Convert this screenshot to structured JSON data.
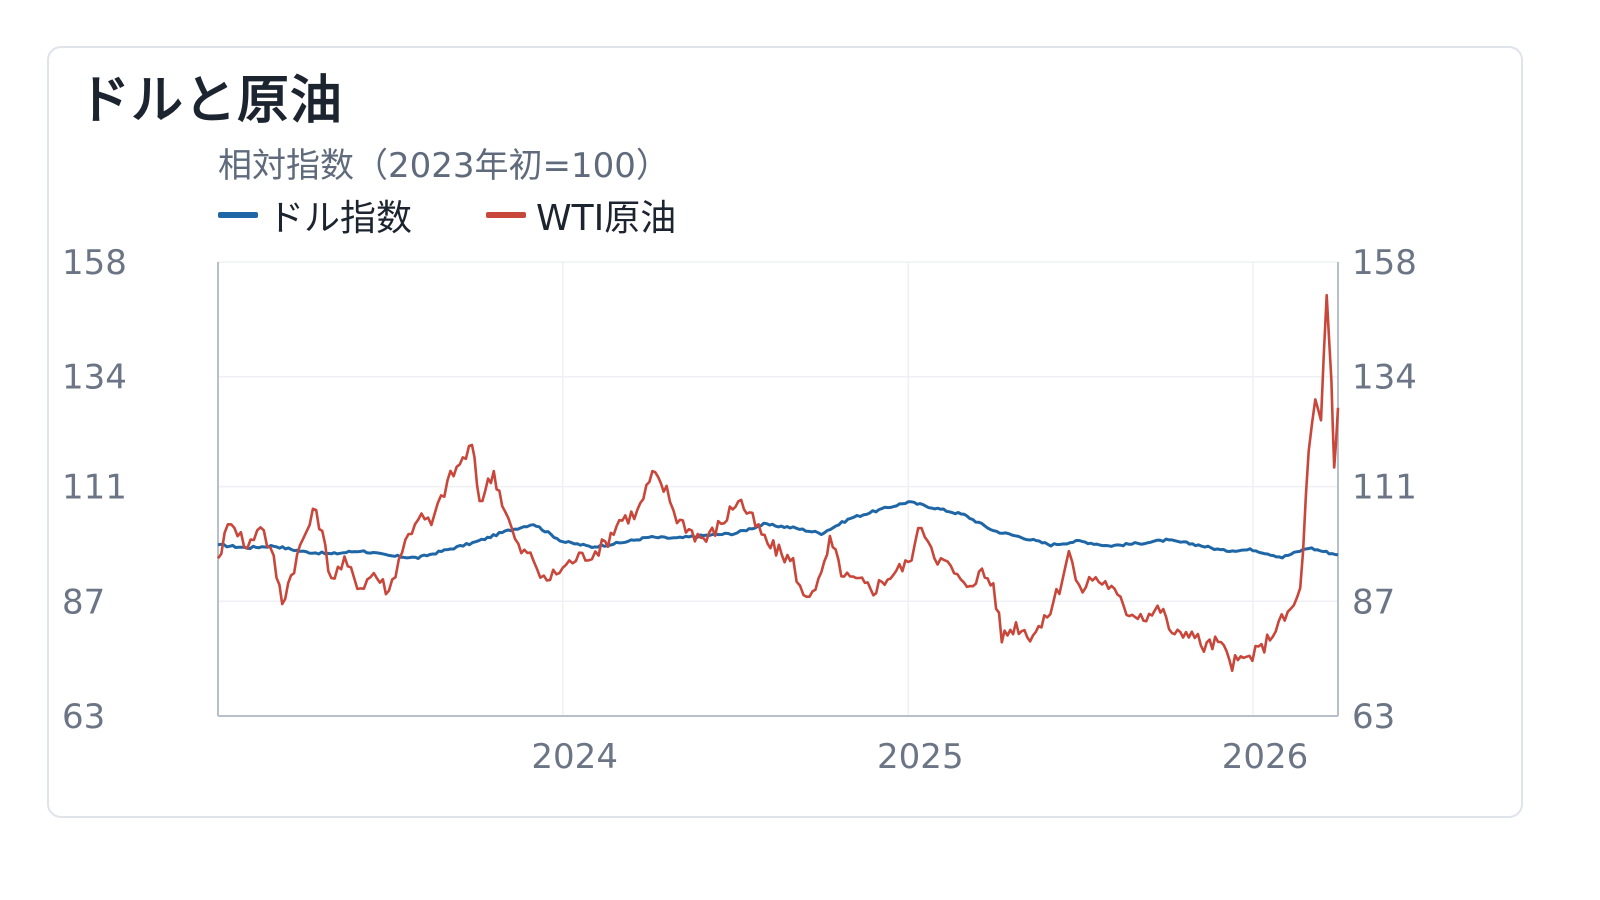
{
  "title": "ドルと原油",
  "chart_data": {
    "type": "line",
    "subtitle": "相対指数（2023年初=100）",
    "x_range": [
      "2023-01-01",
      "2026-04-01"
    ],
    "y_range": [
      63,
      158
    ],
    "y_ticks": [
      63,
      87,
      111,
      134,
      158
    ],
    "x_ticks": [
      {
        "label": "2024",
        "date": "2024-01-01"
      },
      {
        "label": "2025",
        "date": "2025-01-01"
      },
      {
        "label": "2026",
        "date": "2026-01-01"
      }
    ],
    "grid": true,
    "legend_position": "top-left",
    "series": [
      {
        "name": "ドル指数",
        "color": "#1f66a6",
        "points": [
          [
            "2023-01-01",
            98.8
          ],
          [
            "2023-02-01",
            98.2
          ],
          [
            "2023-03-01",
            98.6
          ],
          [
            "2023-04-01",
            97.4
          ],
          [
            "2023-05-01",
            96.9
          ],
          [
            "2023-06-01",
            97.6
          ],
          [
            "2023-07-01",
            96.5
          ],
          [
            "2023-08-01",
            96.1
          ],
          [
            "2023-09-01",
            97.8
          ],
          [
            "2023-10-01",
            99.4
          ],
          [
            "2023-11-01",
            101.6
          ],
          [
            "2023-12-01",
            103.2
          ],
          [
            "2024-01-01",
            99.5
          ],
          [
            "2024-02-01",
            98.4
          ],
          [
            "2024-03-01",
            99.2
          ],
          [
            "2024-04-01",
            100.4
          ],
          [
            "2024-05-01",
            100.2
          ],
          [
            "2024-06-01",
            100.8
          ],
          [
            "2024-07-01",
            101.2
          ],
          [
            "2024-08-01",
            103.1
          ],
          [
            "2024-09-01",
            102.4
          ],
          [
            "2024-10-01",
            101.2
          ],
          [
            "2024-11-01",
            104.4
          ],
          [
            "2024-12-01",
            106.1
          ],
          [
            "2025-01-01",
            107.8
          ],
          [
            "2025-02-01",
            106.4
          ],
          [
            "2025-03-01",
            105.1
          ],
          [
            "2025-04-01",
            101.8
          ],
          [
            "2025-05-01",
            100.4
          ],
          [
            "2025-06-01",
            98.8
          ],
          [
            "2025-07-01",
            99.6
          ],
          [
            "2025-08-01",
            98.6
          ],
          [
            "2025-09-01",
            99.1
          ],
          [
            "2025-10-01",
            99.8
          ],
          [
            "2025-11-01",
            98.9
          ],
          [
            "2025-12-01",
            97.6
          ],
          [
            "2026-01-01",
            97.8
          ],
          [
            "2026-02-01",
            96.2
          ],
          [
            "2026-03-01",
            98.2
          ],
          [
            "2026-04-01",
            96.7
          ]
        ]
      },
      {
        "name": "WTI原油",
        "color": "#c8473a",
        "points": [
          [
            "2023-01-01",
            96.0
          ],
          [
            "2023-01-15",
            104.5
          ],
          [
            "2023-02-01",
            98.0
          ],
          [
            "2023-02-15",
            103.5
          ],
          [
            "2023-03-01",
            95.5
          ],
          [
            "2023-03-10",
            87.0
          ],
          [
            "2023-04-01",
            100.0
          ],
          [
            "2023-04-15",
            106.5
          ],
          [
            "2023-05-01",
            92.0
          ],
          [
            "2023-05-15",
            95.0
          ],
          [
            "2023-06-01",
            90.0
          ],
          [
            "2023-06-15",
            93.0
          ],
          [
            "2023-07-01",
            89.0
          ],
          [
            "2023-07-15",
            98.0
          ],
          [
            "2023-08-01",
            105.0
          ],
          [
            "2023-08-15",
            103.0
          ],
          [
            "2023-09-01",
            112.0
          ],
          [
            "2023-09-27",
            119.5
          ],
          [
            "2023-10-05",
            108.0
          ],
          [
            "2023-10-20",
            114.0
          ],
          [
            "2023-11-01",
            106.0
          ],
          [
            "2023-11-15",
            98.0
          ],
          [
            "2023-12-01",
            96.0
          ],
          [
            "2023-12-12",
            91.0
          ],
          [
            "2024-01-01",
            94.0
          ],
          [
            "2024-01-15",
            96.0
          ],
          [
            "2024-02-01",
            97.0
          ],
          [
            "2024-02-15",
            99.0
          ],
          [
            "2024-03-01",
            104.0
          ],
          [
            "2024-03-20",
            105.5
          ],
          [
            "2024-04-05",
            113.5
          ],
          [
            "2024-04-20",
            110.0
          ],
          [
            "2024-05-01",
            104.5
          ],
          [
            "2024-05-20",
            101.0
          ],
          [
            "2024-06-01",
            100.0
          ],
          [
            "2024-06-20",
            104.0
          ],
          [
            "2024-07-05",
            108.5
          ],
          [
            "2024-07-20",
            104.0
          ],
          [
            "2024-08-05",
            99.0
          ],
          [
            "2024-08-20",
            97.0
          ],
          [
            "2024-09-01",
            95.0
          ],
          [
            "2024-09-12",
            87.5
          ],
          [
            "2024-10-01",
            92.0
          ],
          [
            "2024-10-10",
            99.5
          ],
          [
            "2024-10-25",
            92.0
          ],
          [
            "2024-11-10",
            91.0
          ],
          [
            "2024-11-25",
            89.5
          ],
          [
            "2024-12-10",
            92.0
          ],
          [
            "2025-01-01",
            95.0
          ],
          [
            "2025-01-15",
            103.0
          ],
          [
            "2025-02-01",
            96.0
          ],
          [
            "2025-02-15",
            94.0
          ],
          [
            "2025-03-01",
            90.0
          ],
          [
            "2025-03-20",
            93.0
          ],
          [
            "2025-04-01",
            90.5
          ],
          [
            "2025-04-10",
            79.5
          ],
          [
            "2025-04-25",
            82.0
          ],
          [
            "2025-05-10",
            80.0
          ],
          [
            "2025-05-25",
            82.5
          ],
          [
            "2025-06-10",
            90.0
          ],
          [
            "2025-06-20",
            97.5
          ],
          [
            "2025-07-01",
            89.0
          ],
          [
            "2025-07-15",
            92.0
          ],
          [
            "2025-08-01",
            90.5
          ],
          [
            "2025-08-20",
            85.0
          ],
          [
            "2025-09-10",
            84.0
          ],
          [
            "2025-09-25",
            85.5
          ],
          [
            "2025-10-10",
            79.5
          ],
          [
            "2025-10-25",
            81.0
          ],
          [
            "2025-11-10",
            77.5
          ],
          [
            "2025-11-25",
            78.5
          ],
          [
            "2025-12-10",
            74.0
          ],
          [
            "2025-12-25",
            75.0
          ],
          [
            "2026-01-10",
            77.0
          ],
          [
            "2026-01-25",
            81.5
          ],
          [
            "2026-02-10",
            85.0
          ],
          [
            "2026-02-20",
            89.0
          ],
          [
            "2026-03-01",
            118.0
          ],
          [
            "2026-03-08",
            128.5
          ],
          [
            "2026-03-14",
            124.0
          ],
          [
            "2026-03-20",
            151.0
          ],
          [
            "2026-03-25",
            133.0
          ],
          [
            "2026-03-28",
            115.0
          ],
          [
            "2026-04-01",
            127.5
          ]
        ]
      }
    ]
  }
}
